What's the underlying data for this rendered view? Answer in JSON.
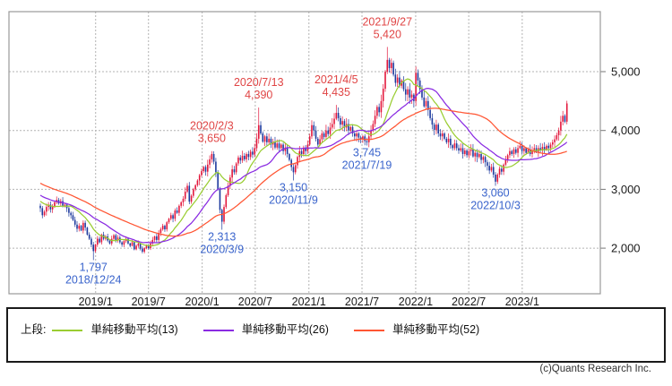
{
  "chart_data": {
    "type": "candlestick",
    "timeframe": "weekly",
    "start_date": "2018/6/25",
    "num_weeks": 259,
    "ylim": [
      1225,
      6020
    ],
    "y_ticks": [
      {
        "price": 2000,
        "label": "2,000"
      },
      {
        "price": 3000,
        "label": "3,000"
      },
      {
        "price": 4000,
        "label": "4,000"
      },
      {
        "price": 5000,
        "label": "5,000"
      }
    ],
    "x_ticks": [
      {
        "week": 27.1,
        "label": "2019/1"
      },
      {
        "week": 53.0,
        "label": "2019/7"
      },
      {
        "week": 79.3,
        "label": "2020/1"
      },
      {
        "week": 105.3,
        "label": "2020/7"
      },
      {
        "week": 131.6,
        "label": "2021/1"
      },
      {
        "week": 157.6,
        "label": "2021/7"
      },
      {
        "week": 183.9,
        "label": "2022/1"
      },
      {
        "week": 209.9,
        "label": "2022/7"
      },
      {
        "week": 236.1,
        "label": "2023/1"
      }
    ],
    "first_open": 2720,
    "closes": [
      2680,
      2560,
      2620,
      2700,
      2740,
      2660,
      2700,
      2780,
      2820,
      2760,
      2800,
      2720,
      2740,
      2680,
      2600,
      2560,
      2480,
      2400,
      2330,
      2380,
      2300,
      2430,
      2350,
      2230,
      2160,
      2060,
      1950,
      2060,
      2160,
      2100,
      2230,
      2160,
      2200,
      2130,
      2080,
      2160,
      2220,
      2140,
      2180,
      2100,
      2060,
      2120,
      2160,
      2080,
      2040,
      2100,
      1980,
      2040,
      2080,
      1990,
      1940,
      2000,
      2040,
      2000,
      2080,
      2140,
      2200,
      2140,
      2260,
      2320,
      2380,
      2320,
      2440,
      2500,
      2560,
      2500,
      2640,
      2600,
      2720,
      2780,
      2840,
      2960,
      3060,
      2790,
      2890,
      3000,
      3070,
      3150,
      3240,
      3310,
      3380,
      3300,
      3420,
      3510,
      3600,
      3470,
      3290,
      3000,
      2650,
      2450,
      2700,
      2900,
      3060,
      3200,
      3340,
      3290,
      3440,
      3540,
      3490,
      3570,
      3510,
      3600,
      3550,
      3640,
      3590,
      3700,
      3860,
      4090,
      3950,
      3810,
      3900,
      3800,
      3860,
      3760,
      3810,
      3710,
      3780,
      3700,
      3760,
      3650,
      3710,
      3600,
      3500,
      3380,
      3290,
      3410,
      3550,
      3650,
      3600,
      3710,
      3650,
      3760,
      3900,
      4090,
      4000,
      3860,
      3760,
      3850,
      3950,
      3890,
      4000,
      3940,
      4050,
      4110,
      4200,
      4300,
      4210,
      4100,
      4160,
      4050,
      4110,
      4000,
      4060,
      3950,
      3900,
      3950,
      3880,
      3850,
      3900,
      3820,
      3800,
      3900,
      4000,
      4110,
      4250,
      4400,
      4310,
      4500,
      4710,
      5000,
      5200,
      5060,
      5150,
      4950,
      4810,
      4900,
      4760,
      4850,
      4700,
      4610,
      4700,
      4560,
      4610,
      4500,
      4980,
      4850,
      4700,
      4560,
      4410,
      4500,
      4350,
      4210,
      4100,
      4010,
      4100,
      3950,
      3900,
      3950,
      3860,
      3800,
      3860,
      3750,
      3700,
      3780,
      3700,
      3660,
      3700,
      3600,
      3660,
      3580,
      3650,
      3680,
      3560,
      3620,
      3550,
      3600,
      3500,
      3550,
      3460,
      3400,
      3320,
      3380,
      3250,
      3130,
      3250,
      3350,
      3300,
      3420,
      3500,
      3580,
      3650,
      3600,
      3680,
      3620,
      3700,
      3740,
      3650,
      3700,
      3620,
      3680,
      3600,
      3650,
      3700,
      3640,
      3700,
      3660,
      3720,
      3680,
      3740,
      3700,
      3760,
      3800,
      3850,
      3920,
      4000,
      4150,
      4250,
      4150,
      4460
    ],
    "extreme_overrides": {
      "26": {
        "low": 1797
      },
      "84": {
        "high": 3650
      },
      "89": {
        "low": 2313
      },
      "107": {
        "high": 4390
      },
      "124": {
        "low": 3150
      },
      "145": {
        "high": 4435
      },
      "160": {
        "low": 3745
      },
      "170": {
        "high": 5420
      },
      "223": {
        "low": 3060
      },
      "258": {
        "high": 4505
      }
    },
    "pre_window_trend": {
      "from": 3520,
      "to": 2720,
      "weeks": 52
    },
    "annotations": [
      {
        "side": "high",
        "date": "2020/2/3",
        "label": "3,650",
        "price": 3650,
        "week": 84
      },
      {
        "side": "high",
        "date": "2020/7/13",
        "label": "4,390",
        "price": 4390,
        "week": 107
      },
      {
        "side": "high",
        "date": "2021/4/5",
        "label": "4,435",
        "price": 4435,
        "week": 145
      },
      {
        "side": "high",
        "date": "2021/9/27",
        "label": "5,420",
        "price": 5420,
        "week": 170
      },
      {
        "side": "low",
        "date": "2018/12/24",
        "label": "1,797",
        "price": 1797,
        "week": 26
      },
      {
        "side": "low",
        "date": "2020/3/9",
        "label": "2,313",
        "price": 2313,
        "week": 89
      },
      {
        "side": "low",
        "date": "2020/11/9",
        "label": "3,150",
        "price": 3150,
        "week": 124
      },
      {
        "side": "low",
        "date": "2021/7/19",
        "label": "3,745",
        "price": 3745,
        "week": 160
      },
      {
        "side": "low",
        "date": "2022/10/3",
        "label": "3,060",
        "price": 3060,
        "week": 223
      }
    ],
    "moving_averages": [
      {
        "period": 13,
        "color": "#9acd32"
      },
      {
        "period": 26,
        "color": "#8a2be2"
      },
      {
        "period": 52,
        "color": "#ff5533"
      }
    ],
    "colors": {
      "up": "#e3173c",
      "down": "#1d3a9e",
      "grid": "#b3b3b3",
      "border": "#999999",
      "axis_text": "#1a1a1a",
      "annotation_high": "#e04545",
      "annotation_low": "#3a64cc"
    }
  },
  "legend": {
    "prefix": "上段:",
    "items": [
      {
        "label": "単純移動平均(13)",
        "color": "#9acd32"
      },
      {
        "label": "単純移動平均(26)",
        "color": "#8a2be2"
      },
      {
        "label": "単純移動平均(52)",
        "color": "#ff5533"
      }
    ]
  },
  "footer": {
    "copyright": "(c)Quants Research Inc."
  }
}
